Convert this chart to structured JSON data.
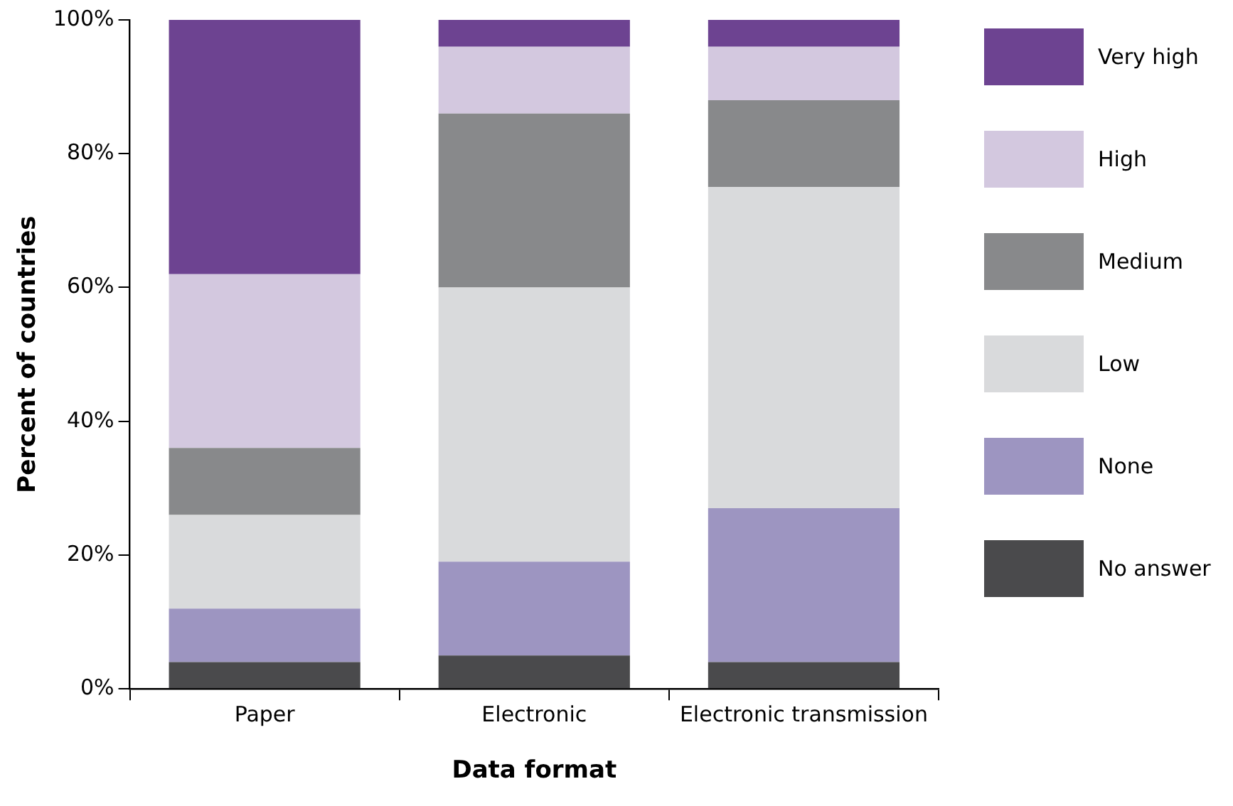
{
  "chart_data": {
    "type": "bar",
    "stacked": true,
    "xlabel": "Data format",
    "ylabel": "Percent of countries",
    "categories": [
      "Paper",
      "Electronic",
      "Electronic transmission"
    ],
    "series": [
      {
        "name": "No answer",
        "color": "#4a4a4c",
        "values": [
          4,
          5,
          4
        ]
      },
      {
        "name": "None",
        "color": "#9d95c1",
        "values": [
          8,
          14,
          23
        ]
      },
      {
        "name": "Low",
        "color": "#d9dadc",
        "values": [
          14,
          41,
          48
        ]
      },
      {
        "name": "Medium",
        "color": "#88898b",
        "values": [
          10,
          26,
          13
        ]
      },
      {
        "name": "High",
        "color": "#d3c8df",
        "values": [
          26,
          10,
          8
        ]
      },
      {
        "name": "Very high",
        "color": "#6d4391",
        "values": [
          38,
          4,
          4
        ]
      }
    ],
    "ylim": [
      0,
      100
    ],
    "yticks": [
      {
        "value": 0,
        "label": "0%"
      },
      {
        "value": 20,
        "label": "20%"
      },
      {
        "value": 40,
        "label": "40%"
      },
      {
        "value": 60,
        "label": "60%"
      },
      {
        "value": 80,
        "label": "80%"
      },
      {
        "value": 100,
        "label": "100%"
      }
    ],
    "grid": false,
    "legend": "right"
  }
}
